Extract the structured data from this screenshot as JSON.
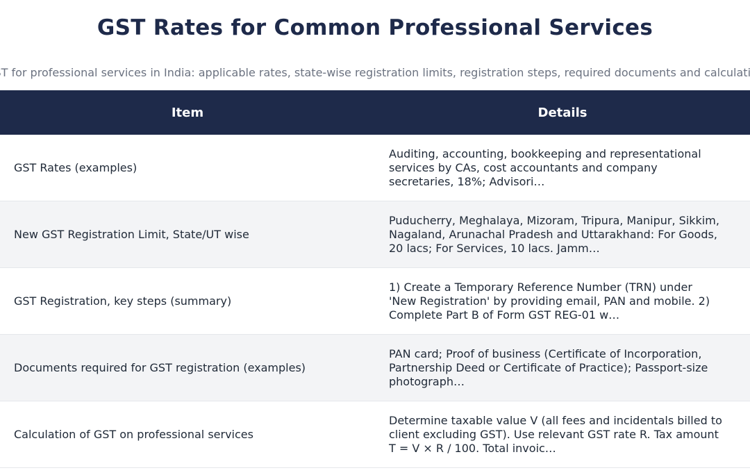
{
  "page": {
    "title": "GST Rates for Common Professional Services",
    "subtitle": "GST for professional services in India: applicable rates, state-wise registration limits, registration steps, required documents and calculation"
  },
  "table": {
    "headers": [
      "Item",
      "Details"
    ],
    "rows": [
      {
        "item": "GST Rates (examples)",
        "details": "Auditing, accounting, bookkeeping and representational services by CAs, cost accountants and company secretaries, 18%; Advisori…"
      },
      {
        "item": "New GST Registration Limit, State/UT wise",
        "details": "Puducherry, Meghalaya, Mizoram, Tripura, Manipur, Sikkim, Nagaland, Arunachal Pradesh and Uttarakhand: For Goods, 20 lacs; For Services, 10 lacs. Jamm…"
      },
      {
        "item": "GST Registration, key steps (summary)",
        "details": "1) Create a Temporary Reference Number (TRN) under 'New Registration' by providing email, PAN and mobile. 2) Complete Part B of Form GST REG-01 w…"
      },
      {
        "item": "Documents required for GST registration (examples)",
        "details": "PAN card; Proof of business (Certificate of Incorporation, Partnership Deed or Certificate of Practice); Passport-size photograph…"
      },
      {
        "item": "Calculation of GST on professional services",
        "details": "Determine taxable value V (all fees and incidentals billed to client excluding GST). Use relevant GST rate R. Tax amount T = V × R / 100. Total invoic…"
      }
    ]
  },
  "colors": {
    "header_bg": "#1e2a4a",
    "title": "#1e2a4a",
    "alt_row_bg": "#f3f4f6",
    "subtitle": "#6b7280"
  }
}
